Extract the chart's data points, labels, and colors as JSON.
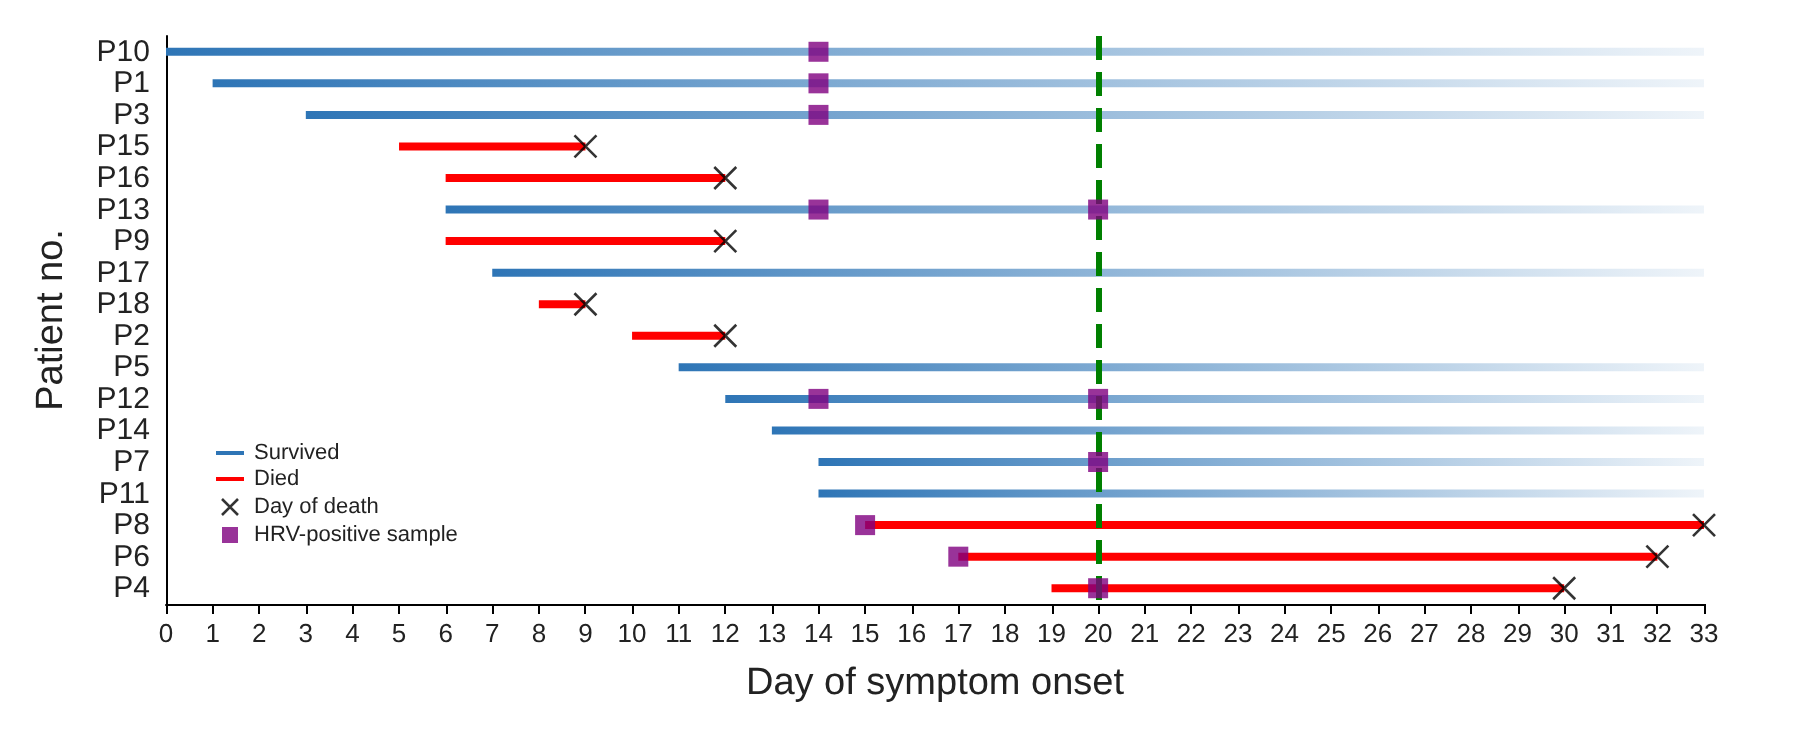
{
  "chart_data": {
    "type": "bar",
    "orientation": "horizontal",
    "xlabel": "Day of symptom onset",
    "ylabel": "Patient no.",
    "categories": [
      "P10",
      "P1",
      "P3",
      "P15",
      "P16",
      "P13",
      "P9",
      "P17",
      "P18",
      "P2",
      "P5",
      "P12",
      "P14",
      "P7",
      "P11",
      "P8",
      "P6",
      "P4"
    ],
    "xlim": [
      0,
      33
    ],
    "xticks": [
      0,
      1,
      2,
      3,
      4,
      5,
      6,
      7,
      8,
      9,
      10,
      11,
      12,
      13,
      14,
      15,
      16,
      17,
      18,
      19,
      20,
      21,
      22,
      23,
      24,
      25,
      26,
      27,
      28,
      29,
      30,
      31,
      32,
      33
    ],
    "series": [
      {
        "name": "Survived",
        "color": "#2e75b6",
        "base": [
          0,
          1,
          3,
          null,
          null,
          6,
          null,
          7,
          null,
          null,
          11,
          12,
          13,
          14,
          14,
          null,
          null,
          null
        ],
        "values": [
          33,
          32,
          30,
          null,
          null,
          27,
          null,
          26,
          null,
          null,
          22,
          21,
          20,
          19,
          19,
          null,
          null,
          null
        ]
      },
      {
        "name": "Died",
        "color": "#ff0000",
        "base": [
          null,
          null,
          null,
          5,
          6,
          null,
          6,
          null,
          8,
          10,
          null,
          null,
          null,
          null,
          null,
          15,
          17,
          19
        ],
        "values": [
          null,
          null,
          null,
          4,
          6,
          null,
          6,
          null,
          1,
          2,
          null,
          null,
          null,
          null,
          null,
          18,
          15,
          11
        ]
      },
      {
        "name": "Day of death",
        "type": "scatter",
        "marker": "cross",
        "color": "#000000",
        "x": [
          "P15",
          "P16",
          "P9",
          "P18",
          "P2",
          "P8",
          "P6",
          "P4"
        ],
        "values": [
          9,
          12,
          12,
          9,
          12,
          33,
          32,
          30
        ]
      },
      {
        "name": "HRV-positive sample",
        "type": "scatter",
        "marker": "square",
        "color": "#800080",
        "x": [
          "P10",
          "P1",
          "P3",
          "P13",
          "P13",
          "P12",
          "P12",
          "P7",
          "P8",
          "P6",
          "P4"
        ],
        "values": [
          14,
          14,
          14,
          14,
          20,
          14,
          20,
          20,
          15,
          17,
          20
        ]
      }
    ],
    "ref_lines": [
      {
        "axis": "x",
        "value": 20,
        "color": "#008000",
        "line_style": "dashed"
      }
    ],
    "legend": "bottom left"
  }
}
